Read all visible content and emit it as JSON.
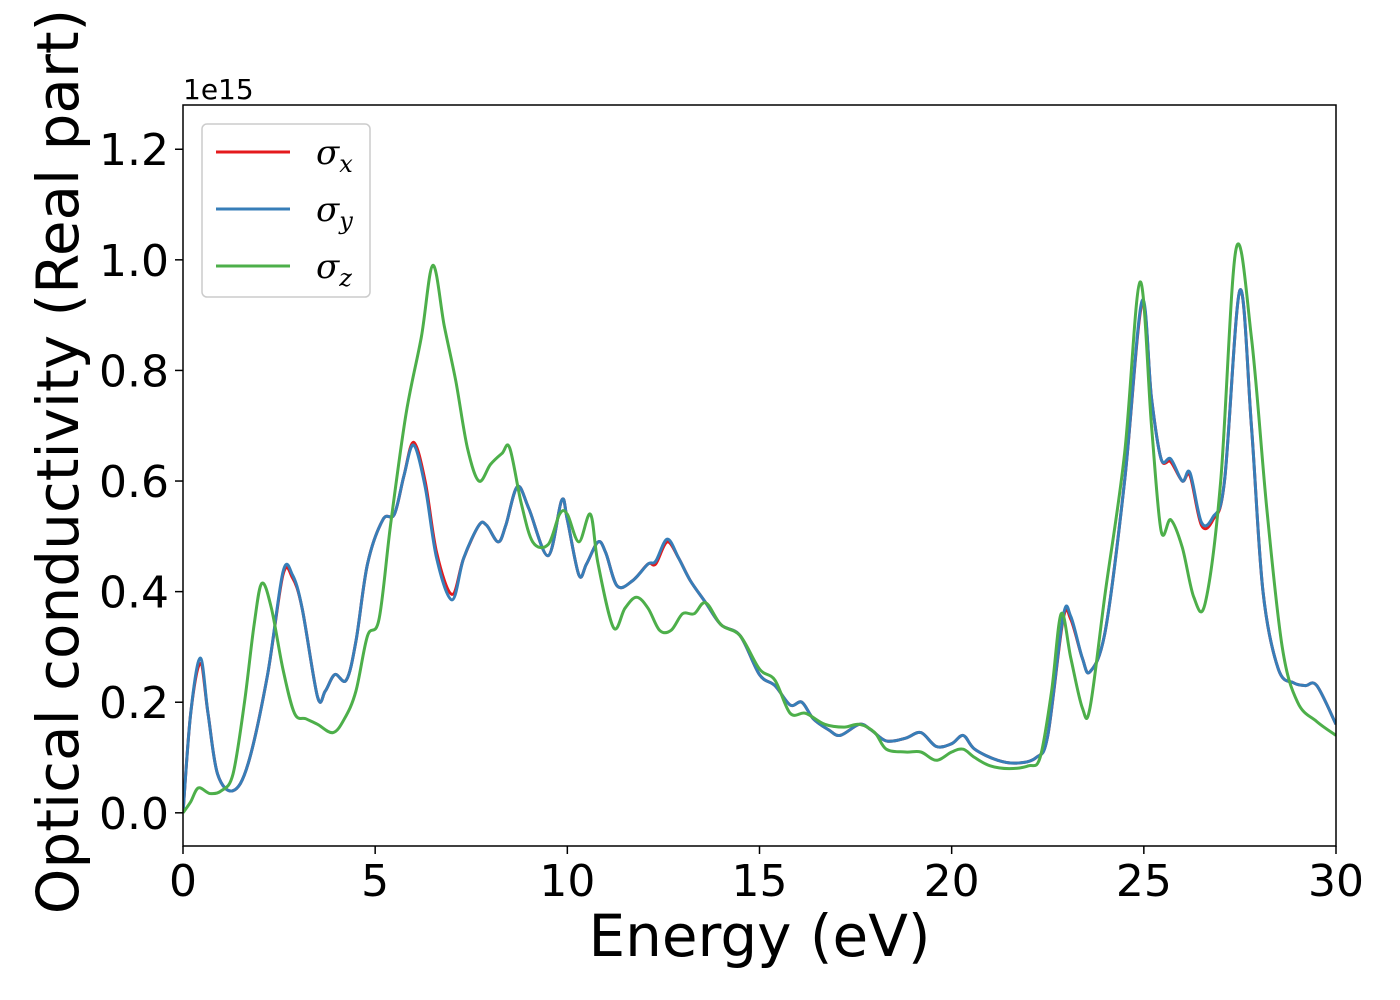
{
  "chart_data": {
    "type": "line",
    "xlabel": "Energy (eV)",
    "ylabel": "Optical conductivity (Real part)",
    "y_offset_text": "1e15",
    "xlim": [
      0,
      30
    ],
    "ylim": [
      -0.06,
      1.28
    ],
    "x_ticks": [
      0,
      5,
      10,
      15,
      20,
      25,
      30
    ],
    "x_tick_labels": [
      "0",
      "5",
      "10",
      "15",
      "20",
      "25",
      "30"
    ],
    "y_ticks": [
      0.0,
      0.2,
      0.4,
      0.6,
      0.8,
      1.0,
      1.2
    ],
    "y_tick_labels": [
      "0.0",
      "0.2",
      "0.4",
      "0.6",
      "0.8",
      "1.0",
      "1.2"
    ],
    "grid": false,
    "legend_position": "top-left",
    "series": [
      {
        "name": "σx",
        "legend_symbol": "σ",
        "legend_subscript": "x",
        "color": "#e41a1c",
        "points": [
          [
            0,
            0
          ],
          [
            0.2,
            0.18
          ],
          [
            0.45,
            0.27
          ],
          [
            0.65,
            0.18
          ],
          [
            0.9,
            0.07
          ],
          [
            1.3,
            0.04
          ],
          [
            1.7,
            0.09
          ],
          [
            2.2,
            0.25
          ],
          [
            2.6,
            0.43
          ],
          [
            2.85,
            0.425
          ],
          [
            3.1,
            0.37
          ],
          [
            3.5,
            0.21
          ],
          [
            3.7,
            0.22
          ],
          [
            3.95,
            0.25
          ],
          [
            4.25,
            0.24
          ],
          [
            4.5,
            0.31
          ],
          [
            4.8,
            0.45
          ],
          [
            5.2,
            0.53
          ],
          [
            5.5,
            0.54
          ],
          [
            5.75,
            0.61
          ],
          [
            6.0,
            0.67
          ],
          [
            6.3,
            0.6
          ],
          [
            6.6,
            0.47
          ],
          [
            7.0,
            0.395
          ],
          [
            7.3,
            0.46
          ],
          [
            7.7,
            0.52
          ],
          [
            7.9,
            0.52
          ],
          [
            8.2,
            0.49
          ],
          [
            8.4,
            0.52
          ],
          [
            8.7,
            0.59
          ],
          [
            9.0,
            0.55
          ],
          [
            9.5,
            0.465
          ],
          [
            9.85,
            0.565
          ],
          [
            10.0,
            0.53
          ],
          [
            10.3,
            0.43
          ],
          [
            10.5,
            0.45
          ],
          [
            10.8,
            0.49
          ],
          [
            11.0,
            0.47
          ],
          [
            11.3,
            0.41
          ],
          [
            11.7,
            0.42
          ],
          [
            12.1,
            0.45
          ],
          [
            12.3,
            0.45
          ],
          [
            12.6,
            0.49
          ],
          [
            12.9,
            0.46
          ],
          [
            13.2,
            0.42
          ],
          [
            13.6,
            0.38
          ],
          [
            14.0,
            0.34
          ],
          [
            14.5,
            0.32
          ],
          [
            15.0,
            0.25
          ],
          [
            15.4,
            0.23
          ],
          [
            15.8,
            0.195
          ],
          [
            16.1,
            0.2
          ],
          [
            16.4,
            0.17
          ],
          [
            16.8,
            0.15
          ],
          [
            17.1,
            0.14
          ],
          [
            17.6,
            0.16
          ],
          [
            17.9,
            0.15
          ],
          [
            18.3,
            0.13
          ],
          [
            18.8,
            0.135
          ],
          [
            19.2,
            0.145
          ],
          [
            19.6,
            0.12
          ],
          [
            20.0,
            0.125
          ],
          [
            20.3,
            0.14
          ],
          [
            20.6,
            0.115
          ],
          [
            21.2,
            0.095
          ],
          [
            21.7,
            0.09
          ],
          [
            22.2,
            0.1
          ],
          [
            22.5,
            0.14
          ],
          [
            22.9,
            0.35
          ],
          [
            23.1,
            0.35
          ],
          [
            23.4,
            0.28
          ],
          [
            23.6,
            0.255
          ],
          [
            24.0,
            0.33
          ],
          [
            24.5,
            0.6
          ],
          [
            24.95,
            0.92
          ],
          [
            25.2,
            0.75
          ],
          [
            25.45,
            0.64
          ],
          [
            25.7,
            0.635
          ],
          [
            26.0,
            0.6
          ],
          [
            26.2,
            0.61
          ],
          [
            26.5,
            0.52
          ],
          [
            26.8,
            0.53
          ],
          [
            27.1,
            0.6
          ],
          [
            27.5,
            0.945
          ],
          [
            27.8,
            0.7
          ],
          [
            28.1,
            0.4
          ],
          [
            28.5,
            0.26
          ],
          [
            28.9,
            0.235
          ],
          [
            29.2,
            0.23
          ],
          [
            29.5,
            0.23
          ],
          [
            30.0,
            0.16
          ]
        ]
      },
      {
        "name": "σy",
        "legend_symbol": "σ",
        "legend_subscript": "y",
        "color": "#377eb8",
        "points": [
          [
            0,
            0
          ],
          [
            0.2,
            0.18
          ],
          [
            0.45,
            0.28
          ],
          [
            0.65,
            0.18
          ],
          [
            0.9,
            0.07
          ],
          [
            1.3,
            0.04
          ],
          [
            1.7,
            0.09
          ],
          [
            2.2,
            0.25
          ],
          [
            2.6,
            0.435
          ],
          [
            2.85,
            0.43
          ],
          [
            3.1,
            0.37
          ],
          [
            3.5,
            0.21
          ],
          [
            3.7,
            0.22
          ],
          [
            3.95,
            0.25
          ],
          [
            4.25,
            0.24
          ],
          [
            4.5,
            0.31
          ],
          [
            4.8,
            0.45
          ],
          [
            5.2,
            0.53
          ],
          [
            5.5,
            0.54
          ],
          [
            5.75,
            0.61
          ],
          [
            6.0,
            0.665
          ],
          [
            6.3,
            0.59
          ],
          [
            6.6,
            0.46
          ],
          [
            7.0,
            0.385
          ],
          [
            7.3,
            0.46
          ],
          [
            7.7,
            0.52
          ],
          [
            7.9,
            0.52
          ],
          [
            8.2,
            0.49
          ],
          [
            8.4,
            0.52
          ],
          [
            8.7,
            0.59
          ],
          [
            9.0,
            0.55
          ],
          [
            9.5,
            0.465
          ],
          [
            9.85,
            0.565
          ],
          [
            10.0,
            0.53
          ],
          [
            10.3,
            0.43
          ],
          [
            10.5,
            0.45
          ],
          [
            10.8,
            0.49
          ],
          [
            11.0,
            0.47
          ],
          [
            11.3,
            0.41
          ],
          [
            11.7,
            0.42
          ],
          [
            12.1,
            0.45
          ],
          [
            12.3,
            0.455
          ],
          [
            12.6,
            0.495
          ],
          [
            12.9,
            0.46
          ],
          [
            13.2,
            0.42
          ],
          [
            13.6,
            0.38
          ],
          [
            14.0,
            0.34
          ],
          [
            14.5,
            0.32
          ],
          [
            15.0,
            0.25
          ],
          [
            15.4,
            0.23
          ],
          [
            15.8,
            0.195
          ],
          [
            16.1,
            0.2
          ],
          [
            16.4,
            0.17
          ],
          [
            16.8,
            0.15
          ],
          [
            17.1,
            0.14
          ],
          [
            17.6,
            0.16
          ],
          [
            17.9,
            0.15
          ],
          [
            18.3,
            0.13
          ],
          [
            18.8,
            0.135
          ],
          [
            19.2,
            0.145
          ],
          [
            19.6,
            0.12
          ],
          [
            20.0,
            0.125
          ],
          [
            20.3,
            0.14
          ],
          [
            20.6,
            0.115
          ],
          [
            21.2,
            0.095
          ],
          [
            21.7,
            0.09
          ],
          [
            22.2,
            0.1
          ],
          [
            22.5,
            0.14
          ],
          [
            22.9,
            0.355
          ],
          [
            23.1,
            0.355
          ],
          [
            23.4,
            0.28
          ],
          [
            23.6,
            0.255
          ],
          [
            24.0,
            0.33
          ],
          [
            24.5,
            0.6
          ],
          [
            24.95,
            0.925
          ],
          [
            25.2,
            0.75
          ],
          [
            25.45,
            0.64
          ],
          [
            25.7,
            0.64
          ],
          [
            26.0,
            0.6
          ],
          [
            26.2,
            0.615
          ],
          [
            26.5,
            0.525
          ],
          [
            26.8,
            0.535
          ],
          [
            27.1,
            0.6
          ],
          [
            27.5,
            0.945
          ],
          [
            27.8,
            0.7
          ],
          [
            28.1,
            0.4
          ],
          [
            28.5,
            0.26
          ],
          [
            28.9,
            0.235
          ],
          [
            29.2,
            0.23
          ],
          [
            29.5,
            0.23
          ],
          [
            30.0,
            0.16
          ]
        ]
      },
      {
        "name": "σz",
        "legend_symbol": "σ",
        "legend_subscript": "z",
        "color": "#4daf4a",
        "points": [
          [
            0,
            0
          ],
          [
            0.2,
            0.02
          ],
          [
            0.4,
            0.045
          ],
          [
            0.7,
            0.035
          ],
          [
            1.0,
            0.04
          ],
          [
            1.3,
            0.07
          ],
          [
            1.6,
            0.2
          ],
          [
            1.85,
            0.34
          ],
          [
            2.05,
            0.415
          ],
          [
            2.3,
            0.37
          ],
          [
            2.6,
            0.26
          ],
          [
            2.9,
            0.18
          ],
          [
            3.2,
            0.17
          ],
          [
            3.5,
            0.16
          ],
          [
            3.9,
            0.145
          ],
          [
            4.2,
            0.17
          ],
          [
            4.5,
            0.22
          ],
          [
            4.8,
            0.32
          ],
          [
            5.1,
            0.35
          ],
          [
            5.4,
            0.52
          ],
          [
            5.8,
            0.72
          ],
          [
            6.2,
            0.86
          ],
          [
            6.5,
            0.99
          ],
          [
            6.8,
            0.88
          ],
          [
            7.1,
            0.78
          ],
          [
            7.4,
            0.66
          ],
          [
            7.7,
            0.6
          ],
          [
            8.0,
            0.63
          ],
          [
            8.3,
            0.65
          ],
          [
            8.5,
            0.66
          ],
          [
            8.8,
            0.56
          ],
          [
            9.1,
            0.49
          ],
          [
            9.5,
            0.485
          ],
          [
            9.8,
            0.54
          ],
          [
            10.0,
            0.54
          ],
          [
            10.3,
            0.49
          ],
          [
            10.6,
            0.54
          ],
          [
            10.8,
            0.45
          ],
          [
            11.2,
            0.335
          ],
          [
            11.5,
            0.37
          ],
          [
            11.8,
            0.39
          ],
          [
            12.1,
            0.37
          ],
          [
            12.4,
            0.33
          ],
          [
            12.7,
            0.33
          ],
          [
            13.0,
            0.36
          ],
          [
            13.3,
            0.36
          ],
          [
            13.6,
            0.38
          ],
          [
            14.0,
            0.34
          ],
          [
            14.5,
            0.32
          ],
          [
            15.0,
            0.26
          ],
          [
            15.4,
            0.24
          ],
          [
            15.8,
            0.18
          ],
          [
            16.2,
            0.18
          ],
          [
            16.7,
            0.16
          ],
          [
            17.2,
            0.155
          ],
          [
            17.6,
            0.16
          ],
          [
            18.0,
            0.145
          ],
          [
            18.3,
            0.115
          ],
          [
            18.8,
            0.11
          ],
          [
            19.2,
            0.11
          ],
          [
            19.6,
            0.095
          ],
          [
            20.0,
            0.11
          ],
          [
            20.3,
            0.115
          ],
          [
            20.6,
            0.1
          ],
          [
            21.0,
            0.085
          ],
          [
            21.5,
            0.08
          ],
          [
            22.0,
            0.085
          ],
          [
            22.3,
            0.1
          ],
          [
            22.6,
            0.22
          ],
          [
            22.85,
            0.36
          ],
          [
            23.1,
            0.28
          ],
          [
            23.4,
            0.19
          ],
          [
            23.6,
            0.19
          ],
          [
            24.0,
            0.4
          ],
          [
            24.5,
            0.65
          ],
          [
            24.9,
            0.96
          ],
          [
            25.2,
            0.7
          ],
          [
            25.45,
            0.51
          ],
          [
            25.7,
            0.53
          ],
          [
            26.0,
            0.48
          ],
          [
            26.3,
            0.39
          ],
          [
            26.6,
            0.38
          ],
          [
            27.0,
            0.6
          ],
          [
            27.4,
            1.02
          ],
          [
            27.8,
            0.86
          ],
          [
            28.2,
            0.55
          ],
          [
            28.6,
            0.3
          ],
          [
            29.0,
            0.2
          ],
          [
            29.5,
            0.165
          ],
          [
            30.0,
            0.14
          ]
        ]
      }
    ]
  }
}
